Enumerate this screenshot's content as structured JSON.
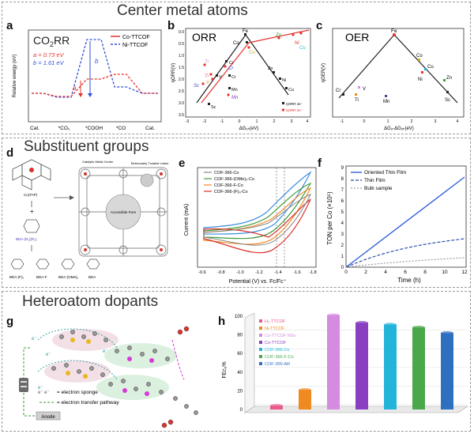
{
  "sections": {
    "top": "Center metal atoms",
    "middle": "Substituent groups",
    "bottom": "Heteroatom dopants"
  },
  "panel_labels": [
    "a",
    "b",
    "c",
    "d",
    "e",
    "f",
    "g",
    "h"
  ],
  "panel_a": {
    "title": "CO",
    "title_sub": "2",
    "title_tail": "RR",
    "ylabel": "Relative energy (eV)",
    "legend": [
      "Co-TTCOF",
      "Ni-TTCOF"
    ],
    "a_text": "a = 0.73 eV",
    "b_text": "b = 1.61 eV",
    "a_mark": "a",
    "b_mark": "b",
    "steps": [
      "Cat.",
      "*CO₂",
      "*COOH",
      "*CO",
      "Cat."
    ],
    "colors": {
      "co": "#e8312c",
      "ni": "#2f4fd8"
    }
  },
  "panel_b": {
    "title": "ORR",
    "ylabel": "ηORR(V)",
    "xlabel": "ΔGₒₕ(eV)",
    "xticks": [
      "-3",
      "-2",
      "-1",
      "0",
      "1",
      "2",
      "3",
      "4"
    ],
    "yticks": [
      "0.0",
      "0.5",
      "1.0",
      "1.5",
      "2.0",
      "2.5",
      "3.0",
      "3.5"
    ],
    "black_labels": [
      "Fe",
      "Co",
      "Cr",
      "V",
      "Cr",
      "Mn",
      "Sc",
      "Zn",
      "Ni",
      "Cu"
    ],
    "color_labels": [
      "Ti",
      "Sc",
      "Ti",
      "V",
      "Cr",
      "Mn",
      "Co",
      "Zn",
      "Ni",
      "Cu"
    ],
    "legend": [
      "ηORR 4e⁻",
      "ηORR 2e⁻"
    ]
  },
  "panel_c": {
    "title": "OER",
    "ylabel": "ηOER(V)",
    "xlabel": "ΔGₒ-ΔGₒₕ(eV)",
    "xticks": [
      "-1",
      "0",
      "1",
      "2",
      "3",
      "4"
    ],
    "labels": [
      "Fe",
      "Cr",
      "V",
      "Ti",
      "Mn",
      "Co",
      "Cu",
      "Ni",
      "Zn",
      "Sc"
    ]
  },
  "panel_d": {
    "texts": [
      "Co(TAP)",
      "BDA-(R₁)(R₂)",
      "Catalytic Metal Center",
      "Molecularly Tunable Linker",
      "Accessible Pore",
      "BDA-(F)₂",
      "BDA-F",
      "BDA-(OMe)₂",
      "BDA"
    ]
  },
  "panel_e": {
    "ylabel": "Current (mA)",
    "xlabel": "Potential (V) vs. Fc/Fc⁺",
    "xticks": [
      "-0.6",
      "-0.8",
      "-1.0",
      "-1.2",
      "-1.4",
      "-1.6",
      "-1.8"
    ],
    "legend": [
      "COF-366-Co",
      "COF-366-(OMe)₂-Co",
      "COF-366-F-Co",
      "COF-366-(F)₄-Co"
    ],
    "colors": [
      "#888888",
      "#3f9b3a",
      "#f28c28",
      "#d8322c"
    ]
  },
  "panel_f": {
    "ylabel": "TON per Co (×10⁵)",
    "xlabel": "Time (h)",
    "xticks": [
      "0",
      "2",
      "4",
      "6",
      "8",
      "10",
      "12"
    ],
    "yticks": [
      "0",
      "1",
      "2",
      "3",
      "4",
      "5",
      "6",
      "7",
      "8",
      "9"
    ],
    "legend": [
      "Oriented Thin Film",
      "Thin Film",
      "Bulk sample"
    ]
  },
  "panel_g": {
    "legend": [
      "= electron sponge",
      "= electron transfer pathway"
    ],
    "anode": "Anode",
    "electron": "e⁻"
  },
  "panel_h": {
    "ylabel": "FEᴄₒ%",
    "yticks": [
      "0",
      "20",
      "40",
      "60",
      "80",
      "100"
    ],
    "chart_data": {
      "type": "bar",
      "categories": [
        "H₂-TTCOF",
        "Ni-TTCOF",
        "Co-TTCOF NSs",
        "Co-TTCOF",
        "COF-366-Co",
        "COF-366-F-Co",
        "COF-300-AR"
      ],
      "values": [
        4,
        21,
        101,
        93,
        91,
        88,
        82
      ],
      "colors": [
        "#e85a8a",
        "#ef8a20",
        "#d58be0",
        "#8a3fc0",
        "#23b4d8",
        "#4aa84a",
        "#2f6fc0"
      ],
      "ylim": [
        0,
        100
      ]
    }
  }
}
